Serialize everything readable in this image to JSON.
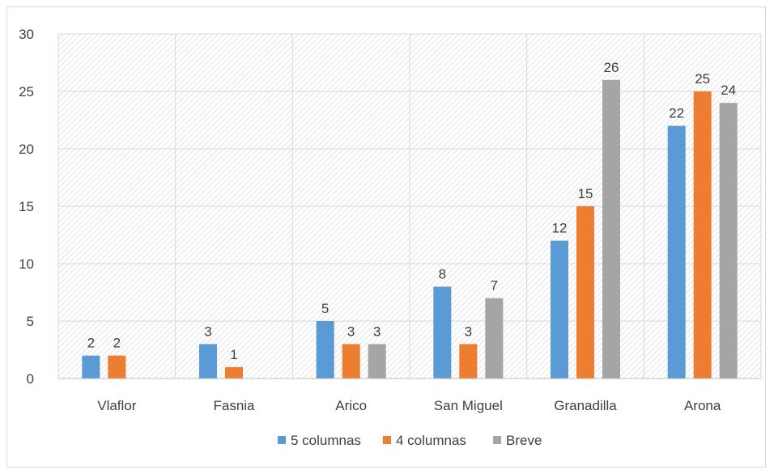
{
  "chart_data": {
    "type": "bar",
    "title": "",
    "xlabel": "",
    "ylabel": "",
    "categories": [
      "Vlaflor",
      "Fasnia",
      "Arico",
      "San Miguel",
      "Granadilla",
      "Arona"
    ],
    "series": [
      {
        "name": "5 columnas",
        "color": "#5b9bd5",
        "values": [
          2,
          3,
          5,
          8,
          12,
          22
        ]
      },
      {
        "name": "4 columnas",
        "color": "#ed7d31",
        "values": [
          2,
          1,
          3,
          3,
          15,
          25
        ]
      },
      {
        "name": "Breve",
        "color": "#a5a5a5",
        "values": [
          null,
          null,
          3,
          7,
          26,
          24
        ]
      }
    ],
    "ylim": [
      0,
      30
    ],
    "yticks": [
      0,
      5,
      10,
      15,
      20,
      25,
      30
    ],
    "grid": true,
    "legend_position": "bottom",
    "data_labels": true
  }
}
